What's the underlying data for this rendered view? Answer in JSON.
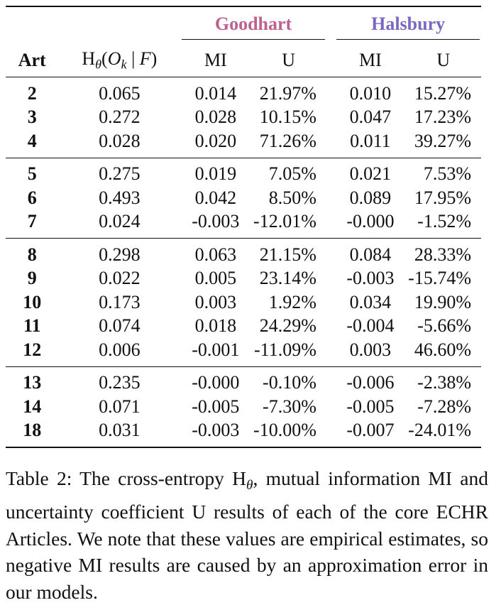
{
  "table": {
    "group_headers": {
      "goodhart": "Goodhart",
      "halsbury": "Halsbury"
    },
    "colors": {
      "goodhart": "#c0608f",
      "halsbury": "#7b68c4"
    },
    "column_headers": {
      "art": "Art",
      "h_prefix": "H",
      "h_sub": "θ",
      "h_open": "(",
      "h_o": "O",
      "h_k": "k",
      "h_given": " | ",
      "h_f": "F",
      "h_close": ")",
      "g_mi": "MI",
      "g_u": "U",
      "h2_mi": "MI",
      "h2_u": "U"
    },
    "blocks": [
      [
        {
          "art": "2",
          "h": "0.065",
          "g_mi": "0.014",
          "g_u": "21.97%",
          "hs_mi": "0.010",
          "hs_u": "15.27%"
        },
        {
          "art": "3",
          "h": "0.272",
          "g_mi": "0.028",
          "g_u": "10.15%",
          "hs_mi": "0.047",
          "hs_u": "17.23%"
        },
        {
          "art": "4",
          "h": "0.028",
          "g_mi": "0.020",
          "g_u": "71.26%",
          "hs_mi": "0.011",
          "hs_u": "39.27%"
        }
      ],
      [
        {
          "art": "5",
          "h": "0.275",
          "g_mi": "0.019",
          "g_u": "7.05%",
          "hs_mi": "0.021",
          "hs_u": "7.53%"
        },
        {
          "art": "6",
          "h": "0.493",
          "g_mi": "0.042",
          "g_u": "8.50%",
          "hs_mi": "0.089",
          "hs_u": "17.95%"
        },
        {
          "art": "7",
          "h": "0.024",
          "g_mi": "-0.003",
          "g_u": "-12.01%",
          "hs_mi": "-0.000",
          "hs_u": "-1.52%"
        }
      ],
      [
        {
          "art": "8",
          "h": "0.298",
          "g_mi": "0.063",
          "g_u": "21.15%",
          "hs_mi": "0.084",
          "hs_u": "28.33%"
        },
        {
          "art": "9",
          "h": "0.022",
          "g_mi": "0.005",
          "g_u": "23.14%",
          "hs_mi": "-0.003",
          "hs_u": "-15.74%"
        },
        {
          "art": "10",
          "h": "0.173",
          "g_mi": "0.003",
          "g_u": "1.92%",
          "hs_mi": "0.034",
          "hs_u": "19.90%"
        },
        {
          "art": "11",
          "h": "0.074",
          "g_mi": "0.018",
          "g_u": "24.29%",
          "hs_mi": "-0.004",
          "hs_u": "-5.66%"
        },
        {
          "art": "12",
          "h": "0.006",
          "g_mi": "-0.001",
          "g_u": "-11.09%",
          "hs_mi": "0.003",
          "hs_u": "46.60%"
        }
      ],
      [
        {
          "art": "13",
          "h": "0.235",
          "g_mi": "-0.000",
          "g_u": "-0.10%",
          "hs_mi": "-0.006",
          "hs_u": "-2.38%"
        },
        {
          "art": "14",
          "h": "0.071",
          "g_mi": "-0.005",
          "g_u": "-7.30%",
          "hs_mi": "-0.005",
          "hs_u": "-7.28%"
        },
        {
          "art": "18",
          "h": "0.031",
          "g_mi": "-0.003",
          "g_u": "-10.00%",
          "hs_mi": "-0.007",
          "hs_u": "-24.01%"
        }
      ]
    ]
  },
  "caption": {
    "label": "Table 2:",
    "text_before": " The cross-entropy H",
    "sub": "θ",
    "text_after": ", mutual information MI and uncertainty coefficient U results of each of the core ECHR Articles.  We note that these values are empirical estimates, so negative MI results are caused by an approximation error in our models."
  }
}
